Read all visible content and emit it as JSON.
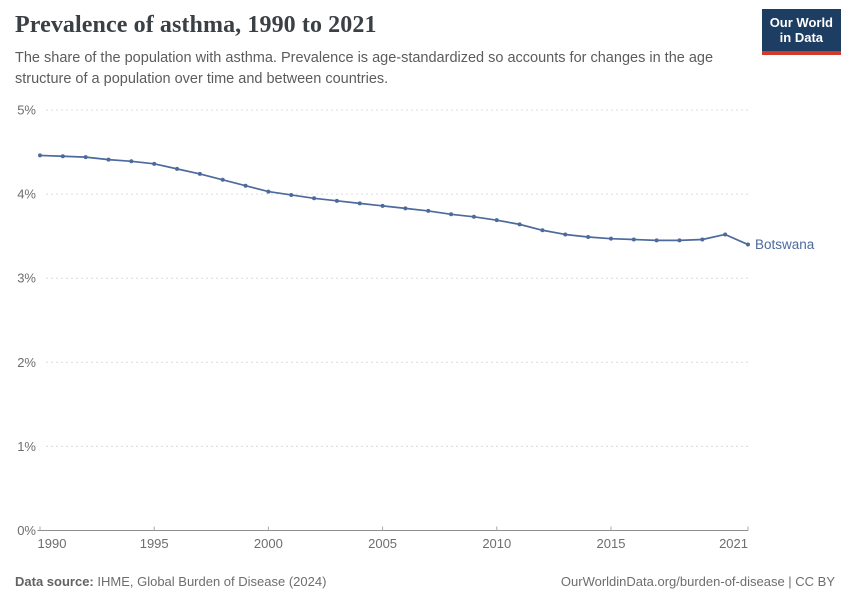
{
  "header": {
    "title": "Prevalence of asthma, 1990 to 2021",
    "subtitle": "The share of the population with asthma. Prevalence is age-standardized so accounts for changes in the age structure of a population over time and between countries.",
    "logo": {
      "line1": "Our World",
      "line2": "in Data"
    }
  },
  "chart_data": {
    "type": "line",
    "title": "Prevalence of asthma, 1990 to 2021",
    "x": [
      1990,
      1991,
      1992,
      1993,
      1994,
      1995,
      1996,
      1997,
      1998,
      1999,
      2000,
      2001,
      2002,
      2003,
      2004,
      2005,
      2006,
      2007,
      2008,
      2009,
      2010,
      2011,
      2012,
      2013,
      2014,
      2015,
      2016,
      2017,
      2018,
      2019,
      2020,
      2021
    ],
    "series": [
      {
        "name": "Botswana",
        "values": [
          4.46,
          4.45,
          4.44,
          4.41,
          4.39,
          4.36,
          4.3,
          4.24,
          4.17,
          4.1,
          4.03,
          3.99,
          3.95,
          3.92,
          3.89,
          3.86,
          3.83,
          3.8,
          3.76,
          3.73,
          3.69,
          3.64,
          3.57,
          3.52,
          3.49,
          3.47,
          3.46,
          3.45,
          3.45,
          3.46,
          3.52,
          3.4
        ]
      }
    ],
    "xlabel": "",
    "ylabel": "",
    "xlim": [
      1990,
      2021
    ],
    "ylim": [
      0,
      5
    ],
    "x_ticks": [
      1990,
      1995,
      2000,
      2005,
      2010,
      2015,
      2021
    ],
    "y_ticks": [
      0,
      1,
      2,
      3,
      4,
      5
    ],
    "y_tick_suffix": "%",
    "grid": "horizontal-dashed",
    "legend_position": "end-of-line-label"
  },
  "colors": {
    "series_line": "#4C6A9C",
    "gridline": "#dcdcdc",
    "axis_line": "#8f8f8f",
    "tick_mark": "#a8a8a8",
    "tick_label": "#6e6e6e",
    "logo_bg": "#1d3d63",
    "logo_red": "#d23a2a"
  },
  "footer": {
    "source_label": "Data source:",
    "source_text": " IHME, Global Burden of Disease (2024)",
    "credit": "OurWorldinData.org/burden-of-disease | CC BY"
  }
}
